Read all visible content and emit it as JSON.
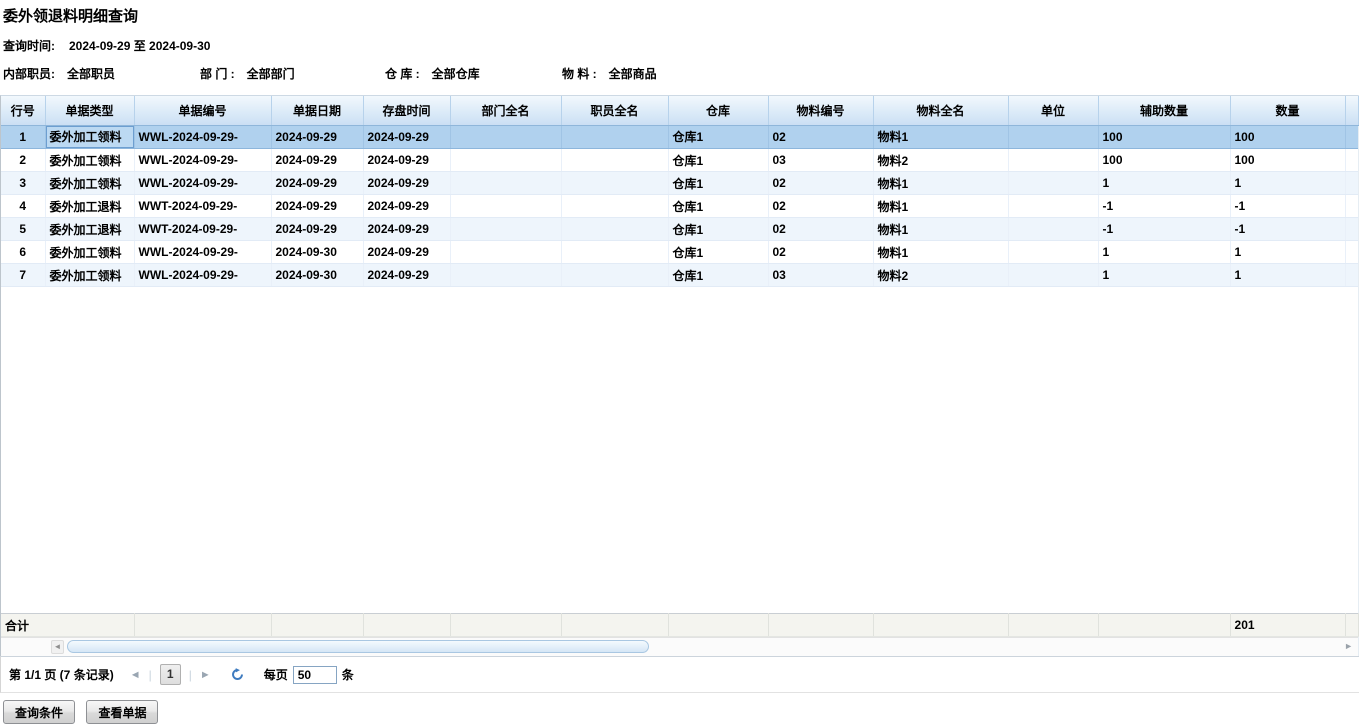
{
  "page": {
    "title": "委外领退料明细查询"
  },
  "filters": {
    "query_time_label": "查询时间:",
    "query_time_value": "2024-09-29 至 2024-09-30",
    "items": [
      {
        "label": "内部职员:",
        "value": "全部职员"
      },
      {
        "label": "部 门 :",
        "value": "全部部门"
      },
      {
        "label": "仓 库 :",
        "value": "全部仓库"
      },
      {
        "label": "物 料 :",
        "value": "全部商品"
      }
    ]
  },
  "grid": {
    "columns": [
      "行号",
      "单据类型",
      "单据编号",
      "单据日期",
      "存盘时间",
      "部门全名",
      "职员全名",
      "仓库",
      "物料编号",
      "物料全名",
      "单位",
      "辅助数量",
      "数量"
    ],
    "rows": [
      [
        "1",
        "委外加工领料",
        "WWL-2024-09-29-",
        "2024-09-29",
        "2024-09-29",
        "",
        "",
        "仓库1",
        "02",
        "物料1",
        "",
        "100",
        "100"
      ],
      [
        "2",
        "委外加工领料",
        "WWL-2024-09-29-",
        "2024-09-29",
        "2024-09-29",
        "",
        "",
        "仓库1",
        "03",
        "物料2",
        "",
        "100",
        "100"
      ],
      [
        "3",
        "委外加工领料",
        "WWL-2024-09-29-",
        "2024-09-29",
        "2024-09-29",
        "",
        "",
        "仓库1",
        "02",
        "物料1",
        "",
        "1",
        "1"
      ],
      [
        "4",
        "委外加工退料",
        "WWT-2024-09-29-",
        "2024-09-29",
        "2024-09-29",
        "",
        "",
        "仓库1",
        "02",
        "物料1",
        "",
        "-1",
        "-1"
      ],
      [
        "5",
        "委外加工退料",
        "WWT-2024-09-29-",
        "2024-09-29",
        "2024-09-29",
        "",
        "",
        "仓库1",
        "02",
        "物料1",
        "",
        "-1",
        "-1"
      ],
      [
        "6",
        "委外加工领料",
        "WWL-2024-09-29-",
        "2024-09-30",
        "2024-09-29",
        "",
        "",
        "仓库1",
        "02",
        "物料1",
        "",
        "1",
        "1"
      ],
      [
        "7",
        "委外加工领料",
        "WWL-2024-09-29-",
        "2024-09-30",
        "2024-09-29",
        "",
        "",
        "仓库1",
        "03",
        "物料2",
        "",
        "1",
        "1"
      ]
    ],
    "selected_row_index": 0,
    "focused_cell_col": 1,
    "total_label": "合计",
    "total_quantity": "201"
  },
  "pagination": {
    "page_info": "第 1/1 页 (7 条记录)",
    "prev_icon": "◄",
    "current_page": "1",
    "next_icon": "►",
    "per_page_label": "每页",
    "per_page_value": "50",
    "per_page_unit": "条"
  },
  "scrollbar": {
    "left_icon": "◄",
    "right_icon": "►"
  },
  "actions": {
    "query_conditions": "查询条件",
    "view_document": "查看单据"
  },
  "colors": {
    "selected_row": "#b0d1ee",
    "header_top": "#f2f8fd",
    "header_bottom": "#cbdff4",
    "accent_blue": "#3e7bbf"
  }
}
